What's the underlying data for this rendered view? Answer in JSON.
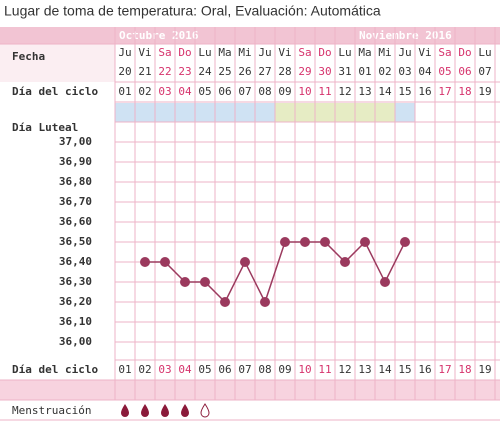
{
  "chart_data": {
    "type": "line",
    "title": "Lugar de toma de temperatura: Oral, Evaluación: Automática",
    "month_labels": [
      "Octubre 2016",
      "Noviembre 2016"
    ],
    "row_labels": {
      "date": "Fecha",
      "cycle_day": "Día del ciclo",
      "luteal": "Día Luteal",
      "menstruation": "Menstruación"
    },
    "weekdays": [
      "Ju",
      "Vi",
      "Sa",
      "Do",
      "Lu",
      "Ma",
      "Mi",
      "Ju",
      "Vi",
      "Sa",
      "Do",
      "Lu",
      "Ma",
      "Mi",
      "Ju",
      "Vi",
      "Sa",
      "Do",
      "Lu"
    ],
    "dates": [
      "20",
      "21",
      "22",
      "23",
      "24",
      "25",
      "26",
      "27",
      "28",
      "29",
      "30",
      "31",
      "01",
      "02",
      "03",
      "04",
      "05",
      "06",
      "07"
    ],
    "categories": [
      "01",
      "02",
      "03",
      "04",
      "05",
      "06",
      "07",
      "08",
      "09",
      "10",
      "11",
      "12",
      "13",
      "14",
      "15",
      "16",
      "17",
      "18",
      "19"
    ],
    "date_colors": [
      "#333",
      "#333",
      "#d6336c",
      "#d6336c",
      "#333",
      "#333",
      "#333",
      "#333",
      "#333",
      "#d6336c",
      "#d6336c",
      "#333",
      "#333",
      "#333",
      "#333",
      "#333",
      "#d6336c",
      "#d6336c",
      "#333"
    ],
    "phase_colors": [
      "#cfe2f3",
      "#cfe2f3",
      "#cfe2f3",
      "#cfe2f3",
      "#cfe2f3",
      "#cfe2f3",
      "#cfe2f3",
      "#cfe2f3",
      "#e6ecc4",
      "#e6ecc4",
      "#e6ecc4",
      "#e6ecc4",
      "#e6ecc4",
      "#e6ecc4",
      "#cfe2f3",
      null,
      null,
      null,
      null
    ],
    "series": [
      {
        "name": "Temperatura",
        "color": "#9b3a5e",
        "values": [
          null,
          36.4,
          36.4,
          36.3,
          36.3,
          36.2,
          36.4,
          36.2,
          36.5,
          36.5,
          36.5,
          36.4,
          36.5,
          36.3,
          36.5,
          null,
          null,
          null,
          null
        ]
      }
    ],
    "ylim": [
      36.0,
      37.0
    ],
    "yticks": [
      {
        "value": 37.0,
        "label": "37,00"
      },
      {
        "value": 36.9,
        "label": "36,90"
      },
      {
        "value": 36.8,
        "label": "36,80"
      },
      {
        "value": 36.7,
        "label": "36,70"
      },
      {
        "value": 36.6,
        "label": "36,60"
      },
      {
        "value": 36.5,
        "label": "36,50"
      },
      {
        "value": 36.4,
        "label": "36,40"
      },
      {
        "value": 36.3,
        "label": "36,30"
      },
      {
        "value": 36.2,
        "label": "36,20"
      },
      {
        "value": 36.1,
        "label": "36,10"
      },
      {
        "value": 36.0,
        "label": "36,00"
      }
    ],
    "grid": true
  }
}
